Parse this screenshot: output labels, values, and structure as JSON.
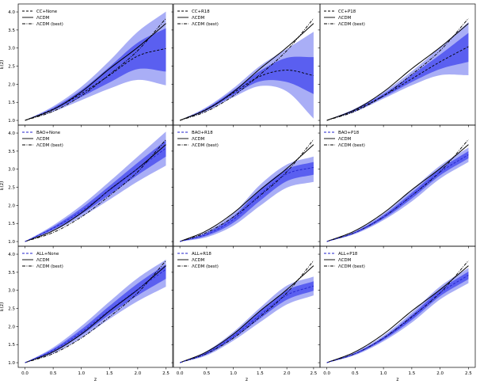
{
  "figure_title": "",
  "chart_data": [
    {
      "id": "cc-none",
      "row": 0,
      "col": 0,
      "type": "line",
      "xlabel": "",
      "ylabel": "E(z)",
      "xlim": [
        -0.12,
        2.62
      ],
      "ylim": [
        0.87,
        4.22
      ],
      "legend": [
        "CC+None",
        "ΛCDM",
        "ΛCDM (best)"
      ],
      "median_color": "#000000",
      "x": [
        0,
        0.5,
        1.0,
        1.5,
        2.0,
        2.5
      ],
      "median": [
        1.0,
        1.31,
        1.74,
        2.25,
        2.78,
        2.99
      ],
      "band1_lo": [
        1.0,
        1.28,
        1.65,
        2.05,
        2.42,
        2.35
      ],
      "band1_hi": [
        1.0,
        1.35,
        1.84,
        2.48,
        3.15,
        3.55
      ],
      "band2_lo": [
        1.0,
        1.24,
        1.56,
        1.88,
        2.12,
        1.97
      ],
      "band2_hi": [
        1.0,
        1.39,
        1.93,
        2.65,
        3.45,
        4.01
      ]
    },
    {
      "id": "cc-r18",
      "row": 0,
      "col": 1,
      "type": "line",
      "xlabel": "",
      "ylabel": "",
      "xlim": [
        -0.12,
        2.62
      ],
      "ylim": [
        0.87,
        4.22
      ],
      "legend": [
        "CC+R18",
        "ΛCDM",
        "ΛCDM (best)"
      ],
      "median_color": "#000000",
      "x": [
        0,
        0.5,
        1.0,
        1.5,
        2.0,
        2.5
      ],
      "median": [
        1.0,
        1.31,
        1.76,
        2.22,
        2.39,
        2.24
      ],
      "band1_lo": [
        1.0,
        1.28,
        1.7,
        2.08,
        2.06,
        1.73
      ],
      "band1_hi": [
        1.0,
        1.34,
        1.83,
        2.37,
        2.73,
        2.75
      ],
      "band2_lo": [
        1.0,
        1.25,
        1.64,
        1.95,
        1.8,
        1.05
      ],
      "band2_hi": [
        1.0,
        1.37,
        1.89,
        2.51,
        2.98,
        3.45
      ]
    },
    {
      "id": "cc-p18",
      "row": 0,
      "col": 2,
      "type": "line",
      "xlabel": "",
      "ylabel": "",
      "xlim": [
        -0.12,
        2.62
      ],
      "ylim": [
        0.87,
        4.22
      ],
      "legend": [
        "CC+P18",
        "ΛCDM",
        "ΛCDM (best)"
      ],
      "median_color": "#000000",
      "x": [
        0,
        0.5,
        1.0,
        1.5,
        2.0,
        2.5
      ],
      "median": [
        1.0,
        1.28,
        1.68,
        2.15,
        2.62,
        3.04
      ],
      "band1_lo": [
        1.0,
        1.26,
        1.64,
        2.06,
        2.42,
        2.62
      ],
      "band1_hi": [
        1.0,
        1.31,
        1.73,
        2.26,
        2.82,
        3.42
      ],
      "band2_lo": [
        1.0,
        1.24,
        1.6,
        1.97,
        2.25,
        2.25
      ],
      "band2_hi": [
        1.0,
        1.33,
        1.78,
        2.36,
        3.02,
        3.72
      ]
    },
    {
      "id": "bao-none",
      "row": 1,
      "col": 0,
      "type": "line",
      "xlabel": "",
      "ylabel": "E(z)",
      "xlim": [
        -0.12,
        2.62
      ],
      "ylim": [
        0.87,
        4.22
      ],
      "legend": [
        "BAO+None",
        "ΛCDM",
        "ΛCDM (best)"
      ],
      "median_color": "#2222cc",
      "x": [
        0,
        0.5,
        1.0,
        1.5,
        2.0,
        2.5
      ],
      "median": [
        1.0,
        1.37,
        1.84,
        2.42,
        3.01,
        3.58
      ],
      "band1_lo": [
        1.0,
        1.33,
        1.76,
        2.29,
        2.84,
        3.35
      ],
      "band1_hi": [
        1.0,
        1.41,
        1.92,
        2.54,
        3.18,
        3.8
      ],
      "band2_lo": [
        1.0,
        1.29,
        1.68,
        2.16,
        2.66,
        3.1
      ],
      "band2_hi": [
        1.0,
        1.45,
        2.0,
        2.66,
        3.35,
        4.04
      ]
    },
    {
      "id": "bao-r18",
      "row": 1,
      "col": 1,
      "type": "line",
      "xlabel": "",
      "ylabel": "",
      "xlim": [
        -0.12,
        2.62
      ],
      "ylim": [
        0.87,
        4.22
      ],
      "legend": [
        "BAO+R18",
        "ΛCDM",
        "ΛCDM (best)"
      ],
      "median_color": "#2222cc",
      "x": [
        0,
        0.5,
        1.0,
        1.5,
        2.0,
        2.5
      ],
      "median": [
        1.0,
        1.2,
        1.61,
        2.3,
        2.87,
        3.05
      ],
      "band1_lo": [
        1.0,
        1.16,
        1.52,
        2.13,
        2.67,
        2.85
      ],
      "band1_hi": [
        1.0,
        1.24,
        1.7,
        2.44,
        3.0,
        3.2
      ],
      "band2_lo": [
        1.0,
        1.12,
        1.44,
        1.99,
        2.49,
        2.65
      ],
      "band2_hi": [
        1.0,
        1.28,
        1.78,
        2.57,
        3.13,
        3.35
      ]
    },
    {
      "id": "bao-p18",
      "row": 1,
      "col": 2,
      "type": "line",
      "xlabel": "",
      "ylabel": "",
      "xlim": [
        -0.12,
        2.62
      ],
      "ylim": [
        0.87,
        4.22
      ],
      "legend": [
        "BAO+P18",
        "ΛCDM",
        "ΛCDM (best)"
      ],
      "median_color": "#2222cc",
      "x": [
        0,
        0.5,
        1.0,
        1.5,
        2.0,
        2.5
      ],
      "median": [
        1.0,
        1.25,
        1.68,
        2.27,
        2.92,
        3.4
      ],
      "band1_lo": [
        1.0,
        1.23,
        1.63,
        2.19,
        2.83,
        3.3
      ],
      "band1_hi": [
        1.0,
        1.27,
        1.73,
        2.35,
        3.01,
        3.5
      ],
      "band2_lo": [
        1.0,
        1.21,
        1.59,
        2.11,
        2.74,
        3.2
      ],
      "band2_hi": [
        1.0,
        1.29,
        1.77,
        2.43,
        3.1,
        3.6
      ]
    },
    {
      "id": "all-none",
      "row": 2,
      "col": 0,
      "type": "line",
      "xlabel": "z",
      "ylabel": "E(z)",
      "xlim": [
        -0.12,
        2.62
      ],
      "ylim": [
        0.87,
        4.22
      ],
      "legend": [
        "ALL+None",
        "ΛCDM",
        "ΛCDM (best)"
      ],
      "median_color": "#2222cc",
      "x": [
        0,
        0.5,
        1.0,
        1.5,
        2.0,
        2.5
      ],
      "median": [
        1.0,
        1.34,
        1.84,
        2.45,
        3.03,
        3.58
      ],
      "band1_lo": [
        1.0,
        1.3,
        1.76,
        2.33,
        2.86,
        3.32
      ],
      "band1_hi": [
        1.0,
        1.38,
        1.92,
        2.57,
        3.19,
        3.72
      ],
      "band2_lo": [
        1.0,
        1.26,
        1.68,
        2.21,
        2.7,
        3.1
      ],
      "band2_hi": [
        1.0,
        1.42,
        2.01,
        2.69,
        3.34,
        3.85
      ]
    },
    {
      "id": "all-r18",
      "row": 2,
      "col": 1,
      "type": "line",
      "xlabel": "z",
      "ylabel": "",
      "xlim": [
        -0.12,
        2.62
      ],
      "ylim": [
        0.87,
        4.22
      ],
      "legend": [
        "ALL+R18",
        "ΛCDM",
        "ΛCDM (best)"
      ],
      "median_color": "#2222cc",
      "x": [
        0,
        0.5,
        1.0,
        1.5,
        2.0,
        2.5
      ],
      "median": [
        1.0,
        1.26,
        1.73,
        2.32,
        2.87,
        3.12
      ],
      "band1_lo": [
        1.0,
        1.23,
        1.67,
        2.22,
        2.74,
        2.99
      ],
      "band1_hi": [
        1.0,
        1.29,
        1.79,
        2.42,
        3.0,
        3.25
      ],
      "band2_lo": [
        1.0,
        1.2,
        1.61,
        2.12,
        2.61,
        2.86
      ],
      "band2_hi": [
        1.0,
        1.32,
        1.85,
        2.52,
        3.13,
        3.38
      ]
    },
    {
      "id": "all-p18",
      "row": 2,
      "col": 2,
      "type": "line",
      "xlabel": "z",
      "ylabel": "",
      "xlim": [
        -0.12,
        2.62
      ],
      "ylim": [
        0.87,
        4.22
      ],
      "legend": [
        "ALL+P18",
        "ΛCDM",
        "ΛCDM (best)"
      ],
      "median_color": "#2222cc",
      "x": [
        0,
        0.5,
        1.0,
        1.5,
        2.0,
        2.5
      ],
      "median": [
        1.0,
        1.25,
        1.67,
        2.25,
        2.93,
        3.42
      ],
      "band1_lo": [
        1.0,
        1.23,
        1.63,
        2.18,
        2.84,
        3.31
      ],
      "band1_hi": [
        1.0,
        1.27,
        1.71,
        2.32,
        3.02,
        3.52
      ],
      "band2_lo": [
        1.0,
        1.21,
        1.59,
        2.11,
        2.75,
        3.2
      ],
      "band2_hi": [
        1.0,
        1.29,
        1.75,
        2.39,
        3.11,
        3.62
      ]
    }
  ],
  "reference_curves": {
    "lcdm": {
      "x": [
        0,
        0.5,
        1.0,
        1.5,
        2.0,
        2.5
      ],
      "y": [
        1.0,
        1.3,
        1.79,
        2.43,
        3.02,
        3.68
      ]
    },
    "lcdm_best": {
      "x": [
        0,
        0.5,
        1.0,
        1.5,
        2.0,
        2.5
      ],
      "y": [
        1.0,
        1.25,
        1.68,
        2.27,
        2.93,
        3.82
      ]
    }
  },
  "xticks": [
    "0.0",
    "0.5",
    "1.0",
    "1.5",
    "2.0",
    "2.5"
  ],
  "yticks": [
    "1.0",
    "1.5",
    "2.0",
    "2.5",
    "3.0",
    "3.5",
    "4.0"
  ],
  "colors": {
    "band_outer": "#a9aef6",
    "band_inner": "#5a5ff0",
    "lcdm": "#000000",
    "axes": "#000000"
  }
}
